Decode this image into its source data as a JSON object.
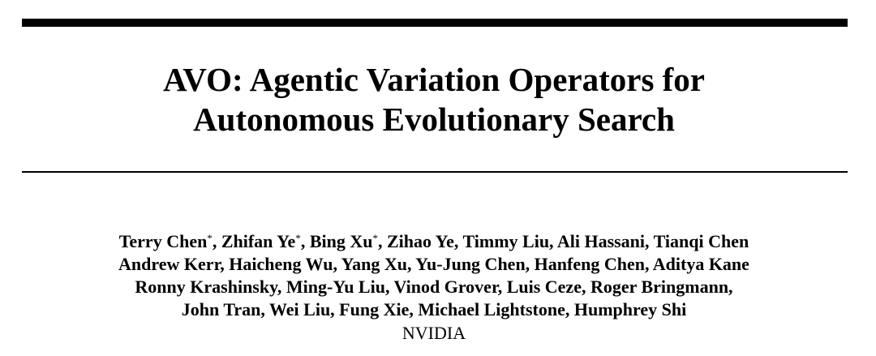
{
  "title_lines": [
    "AVO: Agentic Variation Operators for",
    "Autonomous Evolutionary Search"
  ],
  "author_lines": [
    [
      {
        "text": "Terry Chen",
        "sup": false
      },
      {
        "text": "*",
        "sup": true
      },
      {
        "text": ", Zhifan Ye",
        "sup": false
      },
      {
        "text": "*",
        "sup": true
      },
      {
        "text": ", Bing Xu",
        "sup": false
      },
      {
        "text": "*",
        "sup": true
      },
      {
        "text": ", Zihao Ye, Timmy Liu, Ali Hassani, Tianqi Chen",
        "sup": false
      }
    ],
    [
      {
        "text": "Andrew Kerr, Haicheng Wu, Yang Xu, Yu-Jung Chen, Hanfeng Chen, Aditya Kane",
        "sup": false
      }
    ],
    [
      {
        "text": "Ronny Krashinsky, Ming-Yu Liu, Vinod Grover, Luis Ceze, Roger Bringmann,",
        "sup": false
      }
    ],
    [
      {
        "text": "John Tran, Wei Liu, Fung Xie, Michael Lightstone, Humphrey Shi",
        "sup": false
      }
    ]
  ],
  "affiliation": "NVIDIA"
}
